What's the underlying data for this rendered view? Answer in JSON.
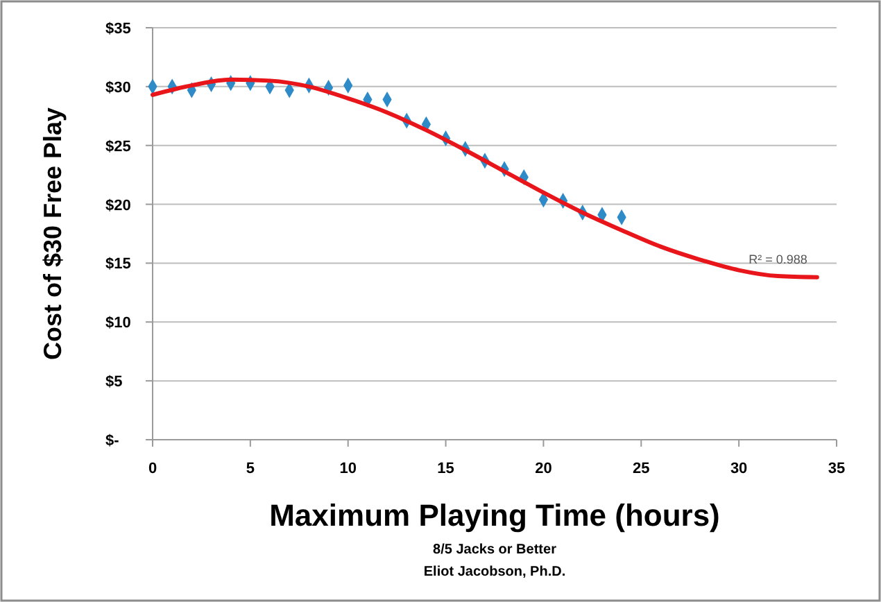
{
  "chart_data": {
    "type": "scatter",
    "xlabel": "Maximum Playing Time (hours)",
    "ylabel": "Cost of $30 Free Play",
    "annotations": [
      "8/5 Jacks or Better",
      "Eliot Jacobson, Ph.D.",
      {
        "text": "R² = 0.988",
        "x": 32,
        "y": 13.9
      }
    ],
    "x": [
      0,
      1,
      2,
      3,
      4,
      5,
      6,
      7,
      8,
      9,
      10,
      11,
      12,
      13,
      14,
      15,
      16,
      17,
      18,
      19,
      20,
      21,
      22,
      23,
      24
    ],
    "series": [
      {
        "color": "#2e8bc8",
        "marker": "diamond",
        "values": [
          30.0,
          30.0,
          29.7,
          30.2,
          30.3,
          30.3,
          30.0,
          29.7,
          30.1,
          29.9,
          30.1,
          28.9,
          28.9,
          27.1,
          26.8,
          25.6,
          24.7,
          23.7,
          23.0,
          22.3,
          20.4,
          20.3,
          19.3,
          19.1,
          18.9
        ]
      },
      {
        "type": "line",
        "color": "#e8161b",
        "marker": "none",
        "x": [
          0,
          2,
          4,
          6,
          8,
          10,
          12,
          14,
          16,
          18,
          20,
          22,
          24,
          26,
          28,
          30,
          32,
          34
        ],
        "values": [
          29.3,
          30.1,
          30.6,
          30.5,
          30.0,
          29.0,
          27.8,
          26.3,
          24.6,
          22.8,
          21.0,
          19.3,
          17.8,
          16.4,
          15.3,
          14.4,
          13.9,
          13.8
        ]
      }
    ],
    "xlim": [
      0,
      35
    ],
    "xticks": [
      0,
      5,
      10,
      15,
      20,
      25,
      30,
      35
    ],
    "ylim": [
      0,
      35
    ],
    "yticks": [
      {
        "value": 0,
        "label": "$-"
      },
      {
        "value": 5,
        "label": "$5"
      },
      {
        "value": 10,
        "label": "$10"
      },
      {
        "value": 15,
        "label": "$15"
      },
      {
        "value": 20,
        "label": "$20"
      },
      {
        "value": 25,
        "label": "$25"
      },
      {
        "value": 30,
        "label": "$30"
      },
      {
        "value": 35,
        "label": "$35"
      }
    ],
    "grid": "y"
  }
}
